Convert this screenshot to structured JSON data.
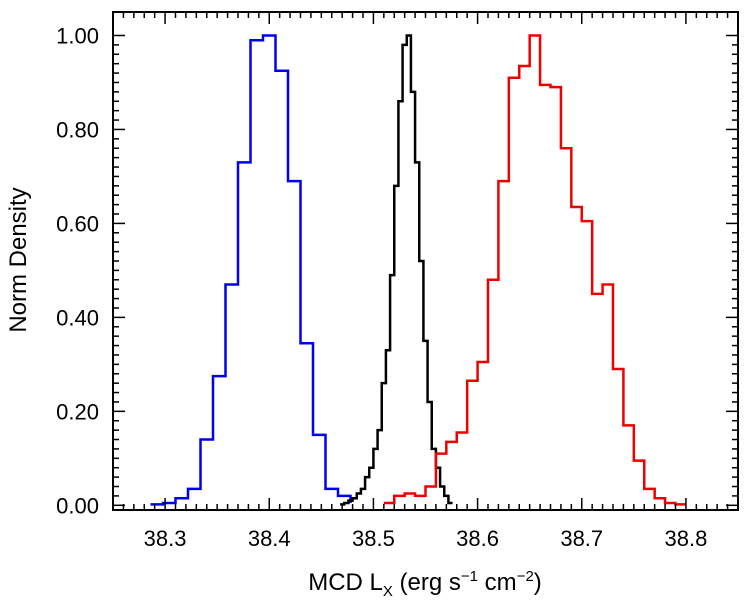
{
  "chart_data": {
    "type": "histogram-step",
    "xlabel": {
      "main": "MCD L",
      "sub": "X",
      "unit_pre": " (erg s",
      "exp1": "−1",
      "unit_mid": " cm",
      "exp2": "−2",
      "unit_post": ")"
    },
    "ylabel": "Norm Density",
    "xlim": [
      38.25,
      38.85
    ],
    "ylim": [
      -0.01,
      1.05
    ],
    "x_ticks": [
      38.3,
      38.4,
      38.5,
      38.6,
      38.7,
      38.8
    ],
    "x_tick_labels": [
      "38.3",
      "38.4",
      "38.5",
      "38.6",
      "38.7",
      "38.8"
    ],
    "y_ticks": [
      0,
      0.2,
      0.4,
      0.6,
      0.8,
      1.0
    ],
    "y_tick_labels": [
      "0.00",
      "0.20",
      "0.40",
      "0.60",
      "0.80",
      "1.00"
    ],
    "series": [
      {
        "color": "#0000ee",
        "bin_edges": [
          38.286,
          38.298,
          38.31,
          38.322,
          38.334,
          38.346,
          38.358,
          38.37,
          38.382,
          38.394,
          38.406,
          38.418,
          38.43,
          38.442,
          38.454,
          38.466,
          38.478
        ],
        "values": [
          0.002,
          0.005,
          0.015,
          0.035,
          0.14,
          0.275,
          0.47,
          0.73,
          0.99,
          1.0,
          0.925,
          0.69,
          0.345,
          0.15,
          0.035,
          0.02,
          0.005
        ]
      },
      {
        "color": "#000000",
        "bin_edges": [
          38.468,
          38.472,
          38.476,
          38.48,
          38.484,
          38.488,
          38.492,
          38.496,
          38.5,
          38.504,
          38.508,
          38.512,
          38.516,
          38.52,
          38.524,
          38.528,
          38.532,
          38.536,
          38.54,
          38.544,
          38.548,
          38.552,
          38.556,
          38.56,
          38.564,
          38.568,
          38.572,
          38.576
        ],
        "values": [
          0.002,
          0.005,
          0.01,
          0.015,
          0.025,
          0.035,
          0.06,
          0.08,
          0.12,
          0.16,
          0.26,
          0.33,
          0.49,
          0.68,
          0.86,
          0.98,
          1.0,
          0.88,
          0.73,
          0.52,
          0.35,
          0.22,
          0.12,
          0.08,
          0.04,
          0.02,
          0.005
        ]
      },
      {
        "color": "#ee0000",
        "bin_edges": [
          38.51,
          38.52,
          38.53,
          38.54,
          38.55,
          38.56,
          38.57,
          38.58,
          38.59,
          38.6,
          38.61,
          38.62,
          38.63,
          38.64,
          38.65,
          38.66,
          38.67,
          38.68,
          38.69,
          38.7,
          38.71,
          38.72,
          38.73,
          38.74,
          38.75,
          38.76,
          38.77,
          38.78,
          38.79,
          38.8
        ],
        "values": [
          0.005,
          0.02,
          0.025,
          0.02,
          0.04,
          0.11,
          0.135,
          0.155,
          0.265,
          0.305,
          0.48,
          0.69,
          0.91,
          0.935,
          1.0,
          0.895,
          0.89,
          0.76,
          0.635,
          0.605,
          0.45,
          0.47,
          0.29,
          0.17,
          0.095,
          0.035,
          0.015,
          0.005,
          0.002
        ]
      }
    ]
  }
}
